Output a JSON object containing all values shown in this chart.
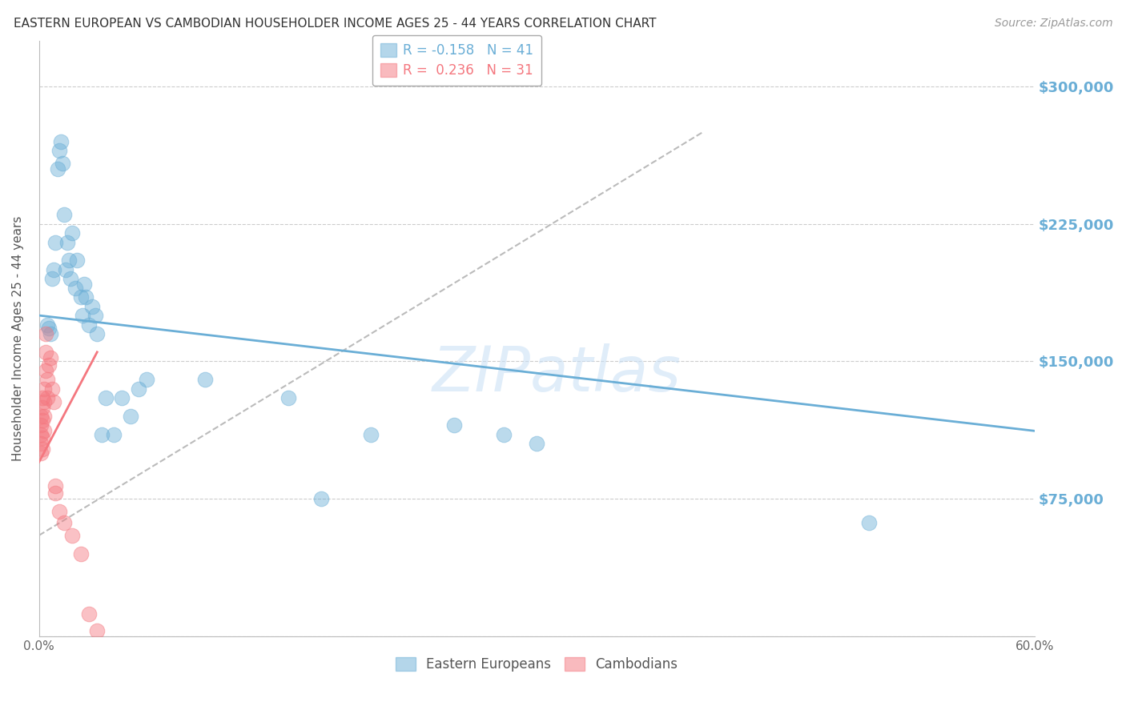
{
  "title": "EASTERN EUROPEAN VS CAMBODIAN HOUSEHOLDER INCOME AGES 25 - 44 YEARS CORRELATION CHART",
  "source": "Source: ZipAtlas.com",
  "ylabel": "Householder Income Ages 25 - 44 years",
  "xlim": [
    0.0,
    0.6
  ],
  "ylim": [
    0,
    325000
  ],
  "yticks": [
    0,
    75000,
    150000,
    225000,
    300000
  ],
  "ytick_labels": [
    "",
    "$75,000",
    "$150,000",
    "$225,000",
    "$300,000"
  ],
  "xtick_positions": [
    0.0,
    0.1,
    0.2,
    0.3,
    0.4,
    0.5,
    0.6
  ],
  "xtick_labels": [
    "0.0%",
    "",
    "",
    "",
    "",
    "",
    "60.0%"
  ],
  "background_color": "#ffffff",
  "grid_color": "#cccccc",
  "watermark": "ZIPatlas",
  "blue_color": "#6aaed6",
  "pink_color": "#f4777f",
  "r_blue": -0.158,
  "n_blue": 41,
  "r_pink": 0.236,
  "n_pink": 31,
  "blue_scatter": [
    [
      0.005,
      170000
    ],
    [
      0.006,
      168000
    ],
    [
      0.007,
      165000
    ],
    [
      0.008,
      195000
    ],
    [
      0.009,
      200000
    ],
    [
      0.01,
      215000
    ],
    [
      0.011,
      255000
    ],
    [
      0.012,
      265000
    ],
    [
      0.013,
      270000
    ],
    [
      0.014,
      258000
    ],
    [
      0.015,
      230000
    ],
    [
      0.016,
      200000
    ],
    [
      0.017,
      215000
    ],
    [
      0.018,
      205000
    ],
    [
      0.019,
      195000
    ],
    [
      0.02,
      220000
    ],
    [
      0.022,
      190000
    ],
    [
      0.023,
      205000
    ],
    [
      0.025,
      185000
    ],
    [
      0.026,
      175000
    ],
    [
      0.028,
      185000
    ],
    [
      0.03,
      170000
    ],
    [
      0.032,
      180000
    ],
    [
      0.034,
      175000
    ],
    [
      0.038,
      110000
    ],
    [
      0.04,
      130000
    ],
    [
      0.045,
      110000
    ],
    [
      0.05,
      130000
    ],
    [
      0.055,
      120000
    ],
    [
      0.06,
      135000
    ],
    [
      0.065,
      140000
    ],
    [
      0.1,
      140000
    ],
    [
      0.15,
      130000
    ],
    [
      0.17,
      75000
    ],
    [
      0.2,
      110000
    ],
    [
      0.25,
      115000
    ],
    [
      0.28,
      110000
    ],
    [
      0.3,
      105000
    ],
    [
      0.5,
      62000
    ],
    [
      0.035,
      165000
    ],
    [
      0.027,
      192000
    ]
  ],
  "pink_scatter": [
    [
      0.001,
      120000
    ],
    [
      0.001,
      115000
    ],
    [
      0.001,
      110000
    ],
    [
      0.001,
      105000
    ],
    [
      0.001,
      100000
    ],
    [
      0.002,
      130000
    ],
    [
      0.002,
      125000
    ],
    [
      0.002,
      118000
    ],
    [
      0.002,
      108000
    ],
    [
      0.002,
      102000
    ],
    [
      0.003,
      135000
    ],
    [
      0.003,
      128000
    ],
    [
      0.003,
      120000
    ],
    [
      0.003,
      112000
    ],
    [
      0.004,
      145000
    ],
    [
      0.004,
      155000
    ],
    [
      0.004,
      165000
    ],
    [
      0.005,
      140000
    ],
    [
      0.005,
      130000
    ],
    [
      0.006,
      148000
    ],
    [
      0.007,
      152000
    ],
    [
      0.008,
      135000
    ],
    [
      0.009,
      128000
    ],
    [
      0.01,
      82000
    ],
    [
      0.01,
      78000
    ],
    [
      0.012,
      68000
    ],
    [
      0.015,
      62000
    ],
    [
      0.02,
      55000
    ],
    [
      0.025,
      45000
    ],
    [
      0.03,
      12000
    ],
    [
      0.035,
      3000
    ]
  ],
  "blue_line_x": [
    0.0,
    0.6
  ],
  "blue_line_y": [
    175000,
    112000
  ],
  "pink_line_x": [
    0.0,
    0.035
  ],
  "pink_line_y": [
    95000,
    155000
  ],
  "dashed_line_x": [
    0.0,
    0.4
  ],
  "dashed_line_y": [
    55000,
    275000
  ],
  "title_fontsize": 11,
  "axis_label_fontsize": 11,
  "tick_fontsize": 11,
  "source_fontsize": 10
}
